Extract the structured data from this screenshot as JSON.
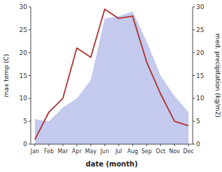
{
  "chart_data": {
    "type": "line",
    "categories": [
      "Jan",
      "Feb",
      "Mar",
      "Apr",
      "May",
      "Jun",
      "Jul",
      "Aug",
      "Sep",
      "Oct",
      "Nov",
      "Dec"
    ],
    "series": [
      {
        "type": "line",
        "color": "#b03030",
        "values": [
          1.0,
          7.0,
          10.0,
          21.0,
          19.0,
          29.5,
          27.5,
          28.0,
          18.0,
          11.0,
          5.0,
          4.0
        ]
      },
      {
        "type": "area",
        "axis": "y2",
        "color": "#b0b8e8",
        "values": [
          5.5,
          5.0,
          8.0,
          10.0,
          14.0,
          27.5,
          28.0,
          29.0,
          22.5,
          15.0,
          10.5,
          7.0
        ]
      }
    ],
    "xlabel": "date (month)",
    "ylabel": "max temp (C)",
    "y2label": "med. precipitation (kg/m2)",
    "ylim": [
      0,
      30
    ],
    "yticks": [
      0,
      5,
      10,
      15,
      20,
      25,
      30
    ],
    "y2lim": [
      0,
      30
    ],
    "y2ticks": [
      0,
      5,
      10,
      15,
      20,
      25,
      30
    ],
    "grid": false
  }
}
